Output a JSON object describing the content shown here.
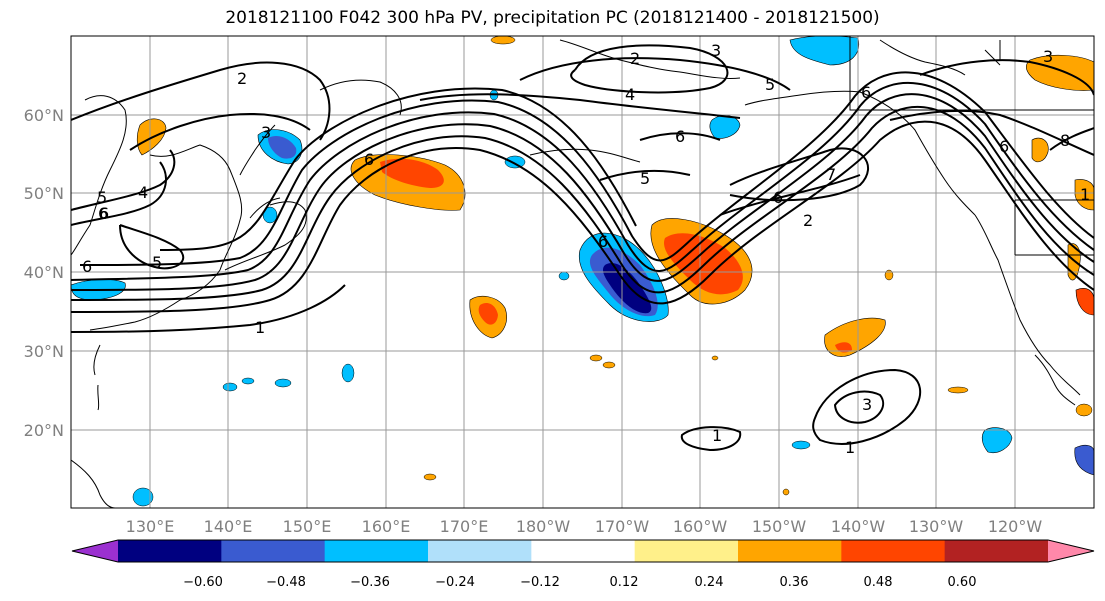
{
  "title": "2018121100 F042 300 hPa PV, precipitation PC (2018121400 - 2018121500)",
  "lat_labels": [
    "60°N",
    "50°N",
    "40°N",
    "30°N",
    "20°N"
  ],
  "lon_labels": [
    "130°E",
    "140°E",
    "150°E",
    "160°E",
    "170°E",
    "180°W",
    "170°W",
    "160°W",
    "150°W",
    "140°W",
    "130°W",
    "120°W"
  ],
  "colorbar": {
    "colors": [
      "#9b30d0",
      "#000080",
      "#3a5bd0",
      "#00bfff",
      "#b0e0fa",
      "#ffffff",
      "#fff08a",
      "#ffa500",
      "#ff4500",
      "#b22222",
      "#ff88aa"
    ],
    "labels": [
      "−0.60",
      "−0.48",
      "−0.36",
      "−0.24",
      "−0.12",
      "0.12",
      "0.24",
      "0.36",
      "0.48",
      "0.60"
    ]
  },
  "contour_labels": [
    "2",
    "3",
    "6",
    "5",
    "6",
    "5",
    "6",
    "4",
    "3",
    "1",
    "6",
    "6",
    "5",
    "6",
    "7",
    "6",
    "2",
    "1",
    "3",
    "1",
    "6",
    "8",
    "3",
    "1",
    "4",
    "6",
    "5",
    "2"
  ]
}
